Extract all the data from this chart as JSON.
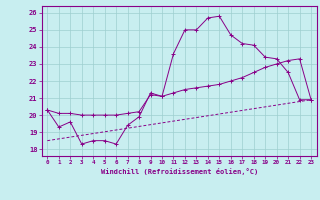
{
  "title": "",
  "xlabel": "Windchill (Refroidissement éolien,°C)",
  "ylabel": "",
  "bg_color": "#c8eef0",
  "line_color": "#880088",
  "grid_color": "#9ecfcf",
  "xlim": [
    -0.5,
    23.5
  ],
  "ylim": [
    17.6,
    26.4
  ],
  "xticks": [
    0,
    1,
    2,
    3,
    4,
    5,
    6,
    7,
    8,
    9,
    10,
    11,
    12,
    13,
    14,
    15,
    16,
    17,
    18,
    19,
    20,
    21,
    22,
    23
  ],
  "yticks": [
    18,
    19,
    20,
    21,
    22,
    23,
    24,
    25,
    26
  ],
  "line1_x": [
    0,
    1,
    2,
    3,
    4,
    5,
    6,
    7,
    8,
    9,
    10,
    11,
    12,
    13,
    14,
    15,
    16,
    17,
    18,
    19,
    20,
    21,
    22,
    23
  ],
  "line1_y": [
    20.3,
    19.3,
    19.6,
    18.3,
    18.5,
    18.5,
    18.3,
    19.4,
    19.9,
    21.3,
    21.1,
    23.6,
    25.0,
    25.0,
    25.7,
    25.8,
    24.7,
    24.2,
    24.1,
    23.4,
    23.3,
    22.5,
    20.9,
    20.9
  ],
  "line2_x": [
    0,
    1,
    2,
    3,
    4,
    5,
    6,
    7,
    8,
    9,
    10,
    11,
    12,
    13,
    14,
    15,
    16,
    17,
    18,
    19,
    20,
    21,
    22,
    23
  ],
  "line2_y": [
    20.3,
    20.1,
    20.1,
    20.0,
    20.0,
    20.0,
    20.0,
    20.1,
    20.2,
    21.2,
    21.1,
    21.3,
    21.5,
    21.6,
    21.7,
    21.8,
    22.0,
    22.2,
    22.5,
    22.8,
    23.0,
    23.2,
    23.3,
    20.9
  ],
  "line3_x": [
    0,
    23
  ],
  "line3_y": [
    18.5,
    20.9
  ],
  "figsize": [
    3.2,
    2.0
  ],
  "dpi": 100
}
